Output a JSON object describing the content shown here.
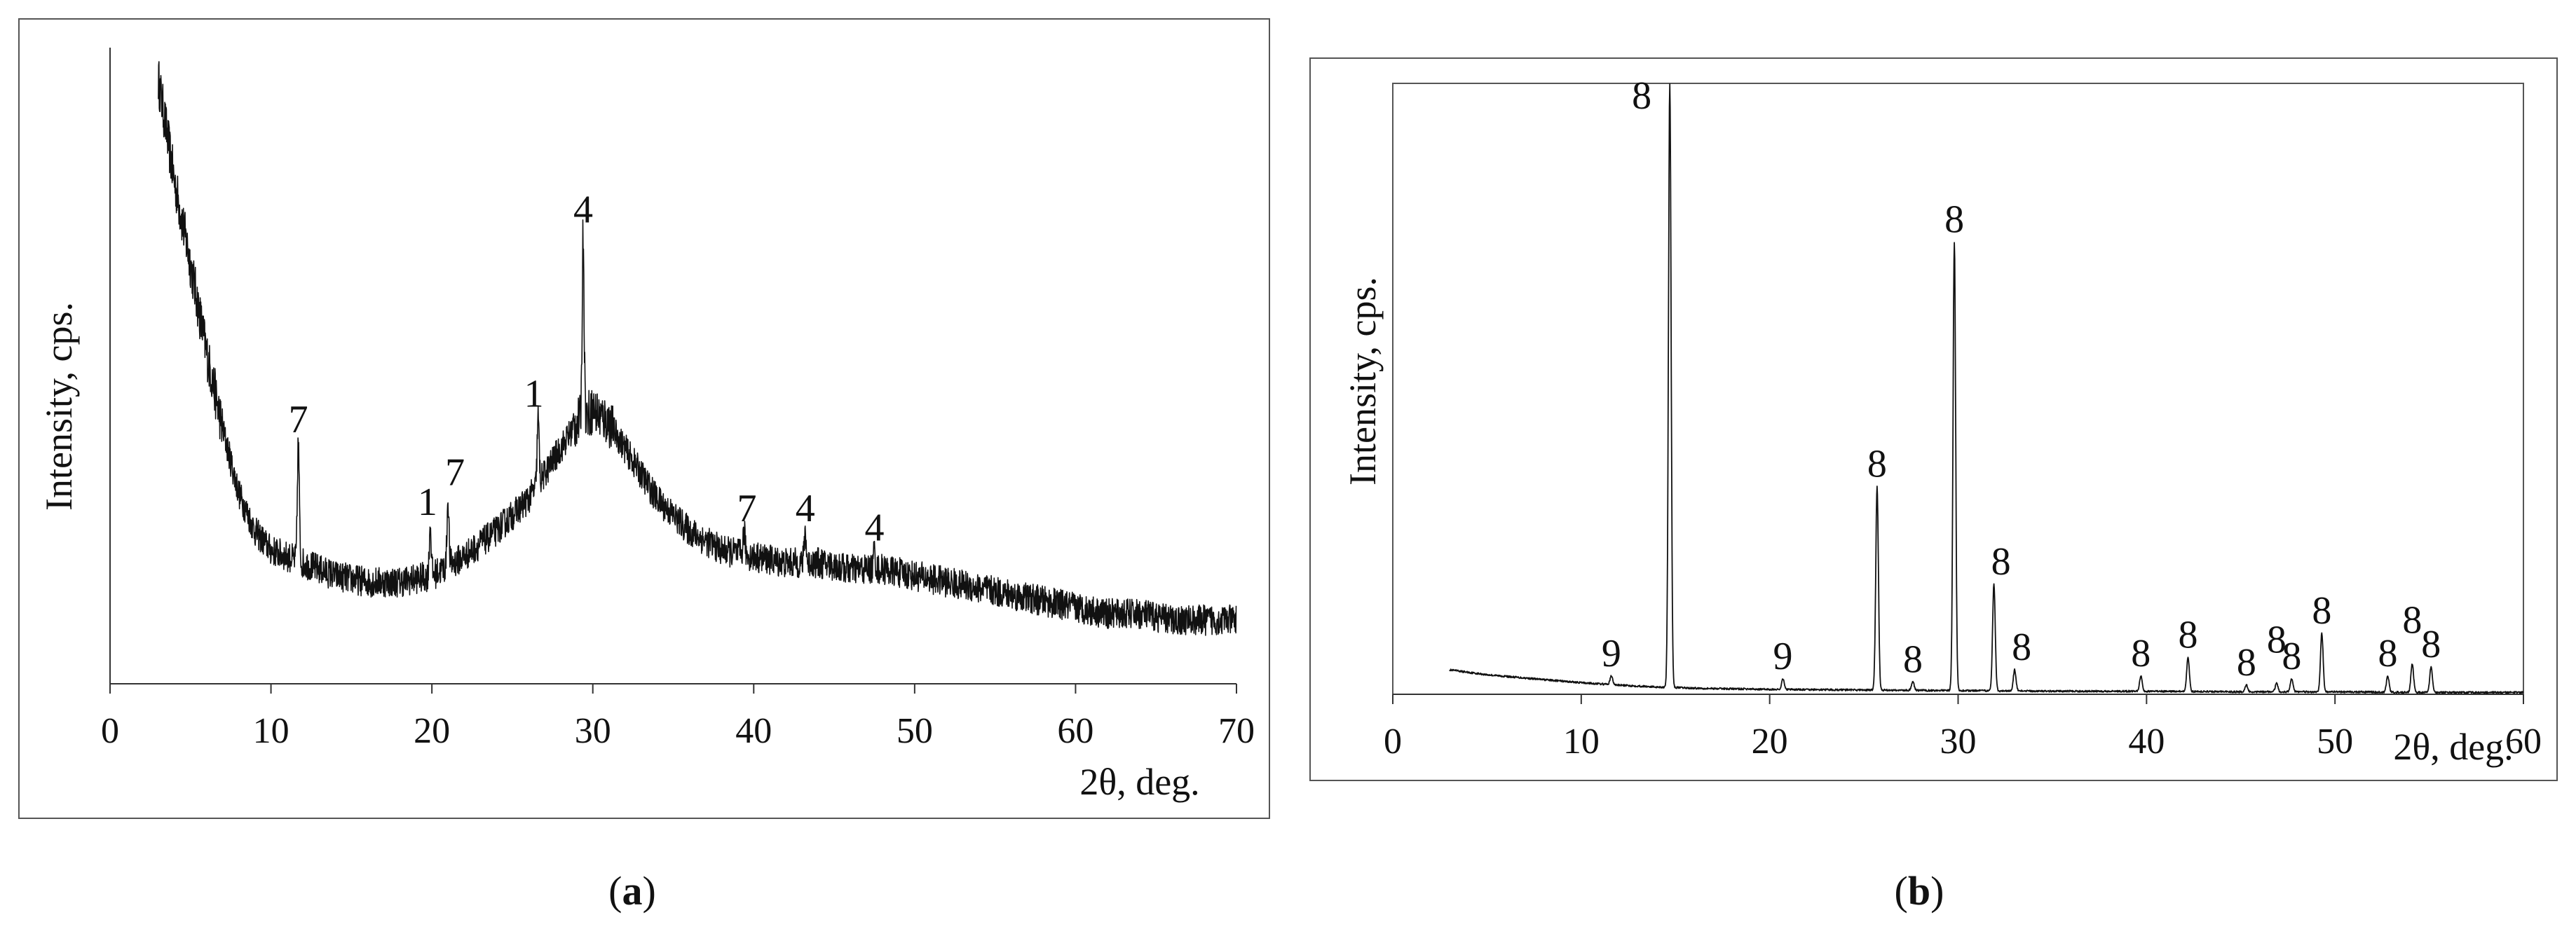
{
  "chart_data": [
    {
      "type": "line",
      "panel_label": "a",
      "xlabel": "2θ, deg.",
      "ylabel": "Intensity, cps.",
      "xlim": [
        0,
        70
      ],
      "ylim": [
        0,
        100
      ],
      "x_ticks": [
        "0",
        "10",
        "20",
        "30",
        "40",
        "50",
        "60",
        "70"
      ],
      "series": [
        {
          "x": [
            3,
            4,
            5,
            6,
            7,
            8,
            9,
            10,
            12,
            14,
            16,
            18,
            20,
            22,
            24,
            26,
            27,
            28,
            29,
            30,
            31,
            32,
            33,
            34,
            36,
            38,
            40,
            42,
            44,
            46,
            48,
            50,
            52,
            54,
            56,
            58,
            60,
            62,
            64,
            66,
            68,
            70
          ],
          "y": [
            95,
            79,
            66,
            52,
            40,
            30,
            24,
            21,
            19,
            17,
            16,
            16,
            17,
            20,
            24,
            29,
            33,
            37,
            41,
            43,
            41,
            37,
            33,
            29,
            24,
            21,
            20,
            19,
            19,
            18,
            18,
            17,
            16,
            15,
            14,
            13,
            12,
            11,
            11,
            10,
            10,
            10
          ]
        }
      ],
      "peaks": [
        {
          "x": 11.7,
          "y": 38,
          "label": "7"
        },
        {
          "x": 19.9,
          "y": 25,
          "label": "1"
        },
        {
          "x": 21.0,
          "y": 29,
          "label": "7"
        },
        {
          "x": 26.6,
          "y": 42,
          "label": "1"
        },
        {
          "x": 29.4,
          "y": 71,
          "label": "4"
        },
        {
          "x": 39.4,
          "y": 24,
          "label": "7"
        },
        {
          "x": 43.2,
          "y": 24,
          "label": "4"
        },
        {
          "x": 47.5,
          "y": 21,
          "label": "4"
        }
      ]
    },
    {
      "type": "line",
      "panel_label": "b",
      "xlabel": "2θ, deg.",
      "ylabel": "Intensity, cps.",
      "xlim": [
        0,
        60
      ],
      "ylim": [
        0,
        100
      ],
      "x_ticks": [
        "0",
        "10",
        "20",
        "30",
        "40",
        "50",
        "60"
      ],
      "series": [
        {
          "x": [
            3,
            5,
            8,
            10,
            12,
            14,
            16,
            20,
            25,
            30,
            35,
            40,
            45,
            50,
            55,
            60
          ],
          "y": [
            4.0,
            3.2,
            2.4,
            1.9,
            1.5,
            1.2,
            1.0,
            0.8,
            0.7,
            0.6,
            0.5,
            0.5,
            0.4,
            0.4,
            0.3,
            0.3
          ]
        }
      ],
      "peaks": [
        {
          "x": 11.6,
          "y": 3,
          "label": "9"
        },
        {
          "x": 14.7,
          "y": 100,
          "label": "8"
        },
        {
          "x": 20.7,
          "y": 2.5,
          "label": "9"
        },
        {
          "x": 25.7,
          "y": 34,
          "label": "8"
        },
        {
          "x": 27.6,
          "y": 2,
          "label": "8"
        },
        {
          "x": 29.8,
          "y": 74,
          "label": "8"
        },
        {
          "x": 31.9,
          "y": 18,
          "label": "8"
        },
        {
          "x": 33.0,
          "y": 4,
          "label": "8"
        },
        {
          "x": 39.7,
          "y": 3,
          "label": "8"
        },
        {
          "x": 42.2,
          "y": 6,
          "label": "8"
        },
        {
          "x": 45.3,
          "y": 1.5,
          "label": "8"
        },
        {
          "x": 46.9,
          "y": 1.8,
          "label": "8"
        },
        {
          "x": 47.7,
          "y": 2.5,
          "label": "8"
        },
        {
          "x": 49.3,
          "y": 10,
          "label": "8"
        },
        {
          "x": 52.8,
          "y": 3,
          "label": "8"
        },
        {
          "x": 54.1,
          "y": 5,
          "label": "8"
        },
        {
          "x": 55.1,
          "y": 4.5,
          "label": "8"
        }
      ]
    }
  ],
  "captions": {
    "a": {
      "open": "(",
      "letter": "a",
      "close": ")"
    },
    "b": {
      "open": "(",
      "letter": "b",
      "close": ")"
    }
  }
}
